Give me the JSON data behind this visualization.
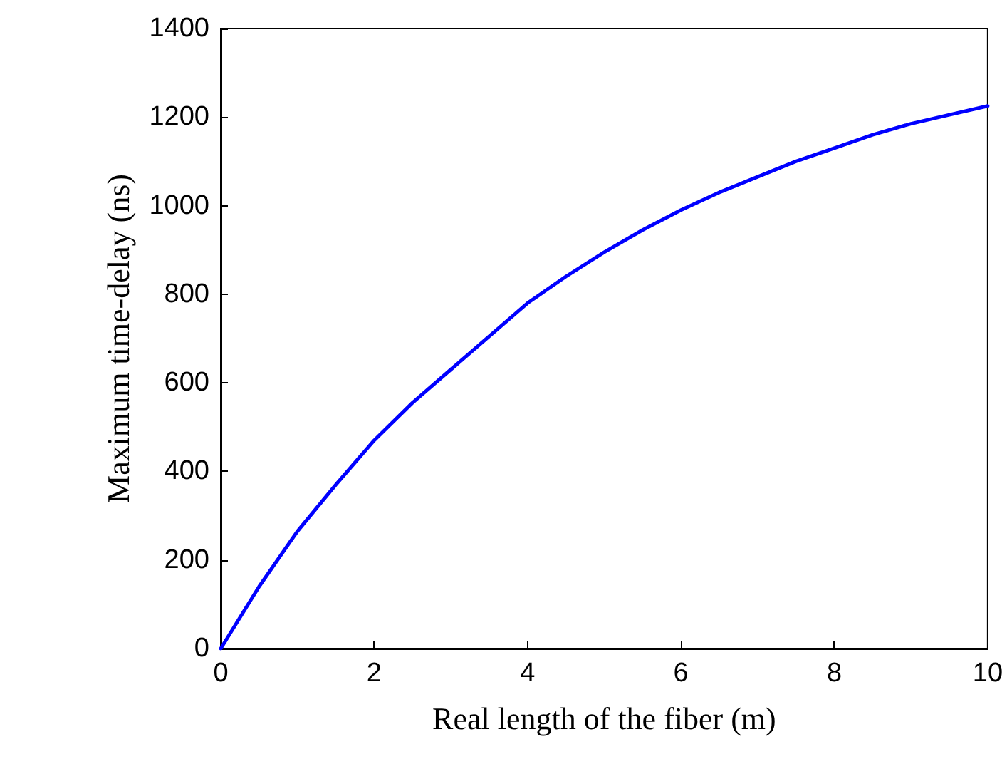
{
  "chart_data": {
    "type": "line",
    "xlabel": "Real length of the fiber (m)",
    "ylabel": "Maximum time-delay (ns)",
    "x": [
      0,
      0.5,
      1,
      1.5,
      2,
      2.5,
      3,
      3.5,
      4,
      4.5,
      5,
      5.5,
      6,
      6.5,
      7,
      7.5,
      8,
      8.5,
      9,
      9.5,
      10
    ],
    "series": [
      {
        "color": "#0000ff",
        "values": [
          0,
          140,
          265,
          370,
          470,
          555,
          630,
          705,
          780,
          840,
          895,
          945,
          990,
          1030,
          1065,
          1100,
          1130,
          1160,
          1185,
          1205,
          1225
        ]
      }
    ],
    "xlim": [
      0,
      10
    ],
    "xticks": [
      0,
      2,
      4,
      6,
      8,
      10
    ],
    "ylim": [
      0,
      1400
    ],
    "yticks": [
      0,
      200,
      400,
      600,
      800,
      1000,
      1200,
      1400
    ],
    "marker": "none",
    "line_style": "solid"
  }
}
